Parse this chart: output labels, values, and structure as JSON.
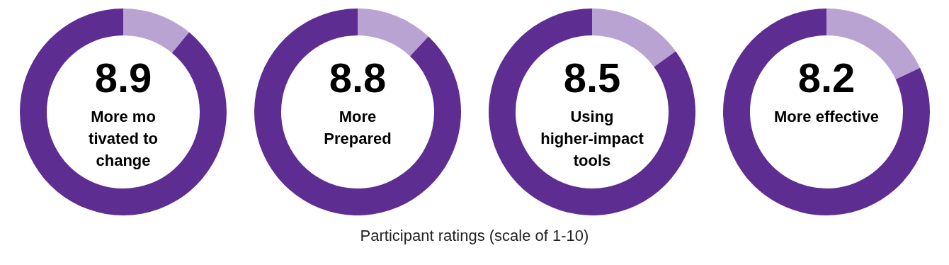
{
  "chart_data": [
    {
      "type": "donut",
      "title": "More mo\ntivated to\nchange",
      "categories": [
        null,
        null
      ],
      "values": [
        1.1,
        8.9
      ],
      "colors": [
        "#b9a3d3",
        "#5e2d91"
      ],
      "value_labels": [
        null,
        "8.9"
      ],
      "annotations": [
        "Participant ratings (scale of 1-10)"
      ]
    },
    {
      "type": "donut",
      "title": "More\nPrepared",
      "categories": [
        null,
        null
      ],
      "values": [
        1.2,
        8.8
      ],
      "colors": [
        "#b9a3d3",
        "#5e2d91"
      ],
      "value_labels": [
        null,
        "8.8"
      ]
    },
    {
      "type": "donut",
      "title": "Using\nhigher-impact\ntools",
      "categories": [
        null,
        null
      ],
      "values": [
        1.5,
        8.5
      ],
      "colors": [
        "#b9a3d3",
        "#5e2d91"
      ],
      "value_labels": [
        null,
        "8.5"
      ]
    },
    {
      "type": "donut",
      "title": "More effective",
      "categories": [
        null,
        null
      ],
      "values": [
        1.8,
        8.2
      ],
      "colors": [
        "#b9a3d3",
        "#5e2d91"
      ],
      "value_labels": [
        null,
        "8.2"
      ]
    }
  ]
}
